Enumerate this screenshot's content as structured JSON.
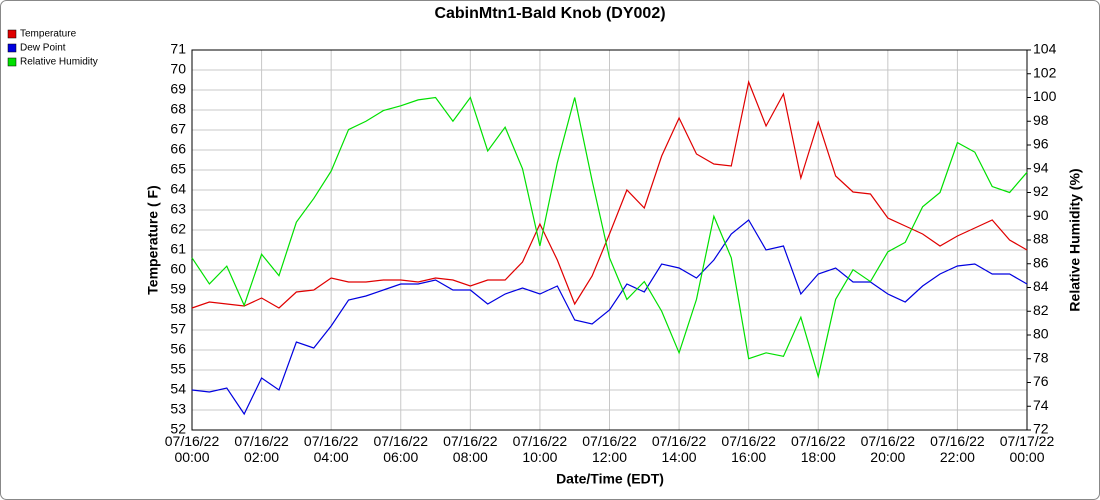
{
  "chart_data": {
    "type": "line",
    "title": "CabinMtn1-Bald Knob (DY002)",
    "x_label": "Date/Time (EDT)",
    "y_label": "Temperature ( F)",
    "y2_label": "Relative Humidity (%)",
    "grid": true,
    "legend": "top-left",
    "x": [
      "07/16/22 00:00",
      "07/16/22 00:30",
      "07/16/22 01:00",
      "07/16/22 01:30",
      "07/16/22 02:00",
      "07/16/22 02:30",
      "07/16/22 03:00",
      "07/16/22 03:30",
      "07/16/22 04:00",
      "07/16/22 04:30",
      "07/16/22 05:00",
      "07/16/22 05:30",
      "07/16/22 06:00",
      "07/16/22 06:30",
      "07/16/22 07:00",
      "07/16/22 07:30",
      "07/16/22 08:00",
      "07/16/22 08:30",
      "07/16/22 09:00",
      "07/16/22 09:30",
      "07/16/22 10:00",
      "07/16/22 10:30",
      "07/16/22 11:00",
      "07/16/22 11:30",
      "07/16/22 12:00",
      "07/16/22 12:30",
      "07/16/22 13:00",
      "07/16/22 13:30",
      "07/16/22 14:00",
      "07/16/22 14:30",
      "07/16/22 15:00",
      "07/16/22 15:30",
      "07/16/22 16:00",
      "07/16/22 16:30",
      "07/16/22 17:00",
      "07/16/22 17:30",
      "07/16/22 18:00",
      "07/16/22 18:30",
      "07/16/22 19:00",
      "07/16/22 19:30",
      "07/16/22 20:00",
      "07/16/22 20:30",
      "07/16/22 21:00",
      "07/16/22 21:30",
      "07/16/22 22:00",
      "07/16/22 22:30",
      "07/16/22 23:00",
      "07/16/22 23:30",
      "07/17/22 00:00"
    ],
    "xlim": [
      "07/16/22 00:00",
      "07/17/22 00:00"
    ],
    "xticks": [
      "07/16/22 00:00",
      "07/16/22 02:00",
      "07/16/22 04:00",
      "07/16/22 06:00",
      "07/16/22 08:00",
      "07/16/22 10:00",
      "07/16/22 12:00",
      "07/16/22 14:00",
      "07/16/22 16:00",
      "07/16/22 18:00",
      "07/16/22 20:00",
      "07/16/22 22:00",
      "07/17/22 00:00"
    ],
    "ylim": [
      52,
      71
    ],
    "yticks": [
      52,
      53,
      54,
      55,
      56,
      57,
      58,
      59,
      60,
      61,
      62,
      63,
      64,
      65,
      66,
      67,
      68,
      69,
      70,
      71
    ],
    "y2lim": [
      72,
      104
    ],
    "y2ticks": [
      72,
      74,
      76,
      78,
      80,
      82,
      84,
      86,
      88,
      90,
      92,
      94,
      96,
      98,
      100,
      102,
      104
    ],
    "series": [
      {
        "name": "Temperature",
        "color": "#e00000",
        "values": [
          58.1,
          58.4,
          58.3,
          58.2,
          58.6,
          58.1,
          58.9,
          59.0,
          59.6,
          59.4,
          59.4,
          59.5,
          59.5,
          59.4,
          59.6,
          59.5,
          59.2,
          59.5,
          59.5,
          60.4,
          62.3,
          60.5,
          58.3,
          59.7,
          61.8,
          64.0,
          63.1,
          65.7,
          67.6,
          65.8,
          65.3,
          65.2,
          69.4,
          67.2,
          68.8,
          64.6,
          67.4,
          64.7,
          63.9,
          63.8,
          62.6,
          62.2,
          61.8,
          61.2,
          61.7,
          62.1,
          62.5,
          61.5,
          61.0
        ]
      },
      {
        "name": "Dew Point",
        "color": "#0000e0",
        "values": [
          54.0,
          53.9,
          54.1,
          52.8,
          54.6,
          54.0,
          56.4,
          56.1,
          57.2,
          58.5,
          58.7,
          59.0,
          59.3,
          59.3,
          59.5,
          59.0,
          59.0,
          58.3,
          58.8,
          59.1,
          58.8,
          59.2,
          57.5,
          57.3,
          58.0,
          59.3,
          58.9,
          60.3,
          60.1,
          59.6,
          60.5,
          61.8,
          62.5,
          61.0,
          61.2,
          58.8,
          59.8,
          60.1,
          59.4,
          59.4,
          58.8,
          58.4,
          59.2,
          59.8,
          60.2,
          60.3,
          59.8,
          59.8,
          59.3
        ]
      },
      {
        "name": "Relative Humidity",
        "color": "#00e000",
        "axis": "y2",
        "values": [
          86.5,
          84.3,
          85.8,
          82.5,
          86.8,
          85.0,
          89.5,
          91.5,
          93.8,
          97.3,
          98.0,
          98.9,
          99.3,
          99.8,
          100.0,
          98.0,
          100.0,
          95.5,
          97.5,
          94.0,
          87.5,
          94.5,
          100.0,
          93.0,
          86.5,
          83.0,
          84.5,
          82.0,
          78.5,
          83.0,
          90.0,
          86.5,
          78.0,
          78.5,
          78.2,
          81.5,
          76.5,
          83.0,
          85.5,
          84.5,
          87.0,
          87.8,
          90.8,
          92.0,
          96.2,
          95.4,
          92.5,
          92.0,
          93.7
        ]
      }
    ]
  }
}
